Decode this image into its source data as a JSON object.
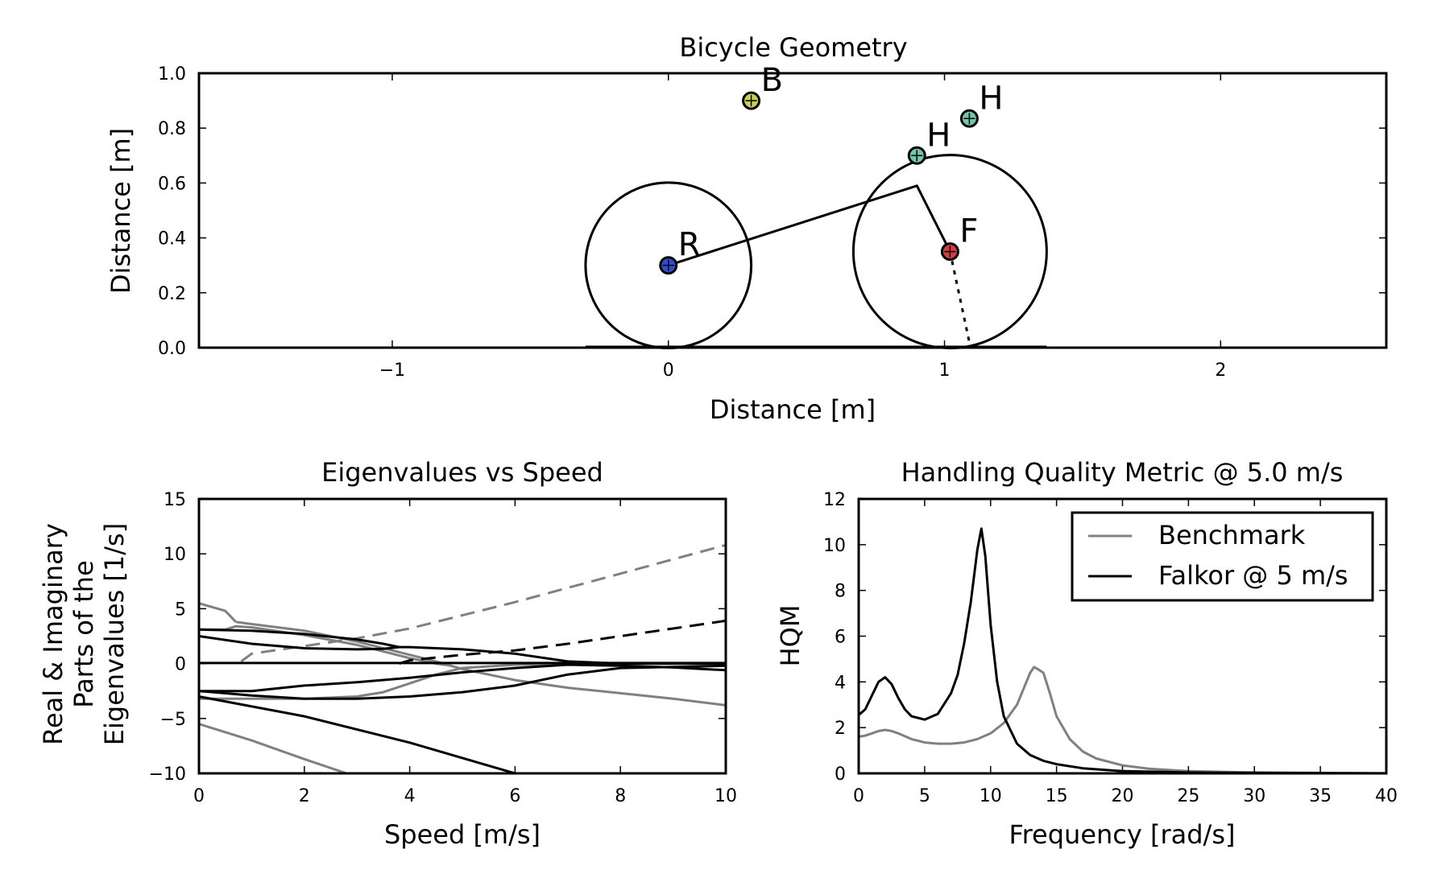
{
  "chart_data": [
    {
      "type": "line",
      "title": "Bicycle Geometry",
      "xlabel": "Distance [m]",
      "ylabel": "Distance [m]",
      "xlim": [
        -1.7,
        2.6
      ],
      "ylim": [
        0.0,
        1.0
      ],
      "xticks": [
        -1,
        0,
        1,
        2
      ],
      "xticklabels": [
        "−1",
        "0",
        "1",
        "2"
      ],
      "yticks": [
        0.0,
        0.2,
        0.4,
        0.6,
        0.8,
        1.0
      ],
      "yticklabels": [
        "0.0",
        "0.2",
        "0.4",
        "0.6",
        "0.8",
        "1.0"
      ],
      "rear_wheel": {
        "center": [
          0.0,
          0.3
        ],
        "radius": 0.3
      },
      "front_wheel": {
        "center": [
          1.02,
          0.35
        ],
        "radius": 0.35
      },
      "frame": [
        [
          0.0,
          0.3
        ],
        [
          0.9,
          0.59
        ],
        [
          1.02,
          0.35
        ]
      ],
      "steer_axis": [
        [
          1.02,
          0.35
        ],
        [
          1.09,
          0.02
        ]
      ],
      "points": [
        {
          "label": "R",
          "x": 0.0,
          "y": 0.3,
          "color": "#3050c8"
        },
        {
          "label": "B",
          "x": 0.3,
          "y": 0.9,
          "color": "#c8d050"
        },
        {
          "label": "H",
          "x": 0.9,
          "y": 0.7,
          "color": "#70c8a8"
        },
        {
          "label": "H",
          "x": 1.09,
          "y": 0.835,
          "color": "#70c8a8"
        },
        {
          "label": "F",
          "x": 1.02,
          "y": 0.35,
          "color": "#d04040"
        }
      ]
    },
    {
      "type": "line",
      "title": "Eigenvalues vs Speed",
      "xlabel": "Speed [m/s]",
      "ylabel": [
        "Real & Imaginary",
        "Parts of the",
        "Eigenvalues [1/s]"
      ],
      "xlim": [
        0,
        10
      ],
      "ylim": [
        -10,
        15
      ],
      "xticks": [
        0,
        2,
        4,
        6,
        8,
        10
      ],
      "xticklabels": [
        "0",
        "2",
        "4",
        "6",
        "8",
        "10"
      ],
      "yticks": [
        -10,
        -5,
        0,
        5,
        10,
        15
      ],
      "yticklabels": [
        "−10",
        "−5",
        "0",
        "5",
        "10",
        "15"
      ],
      "series": [
        {
          "color": "#808080",
          "style": "solid",
          "x": [
            0,
            0.5,
            0.7
          ],
          "y": [
            5.5,
            4.8,
            3.8
          ]
        },
        {
          "color": "#808080",
          "style": "solid",
          "x": [
            0.7,
            1,
            2,
            3,
            4,
            4.5,
            5,
            6,
            7,
            8,
            9,
            10
          ],
          "y": [
            3.8,
            3.6,
            3.0,
            2.0,
            0.8,
            0.2,
            -0.5,
            -1.5,
            -2.2,
            -2.7,
            -3.2,
            -3.8
          ]
        },
        {
          "color": "#808080",
          "style": "solid",
          "x": [
            0,
            0.5,
            0.7,
            1,
            2,
            3,
            3.5,
            4,
            4.5,
            4.8
          ],
          "y": [
            3.1,
            3.1,
            3.4,
            3.3,
            2.6,
            1.7,
            1.1,
            0.5,
            0.0,
            -0.2
          ]
        },
        {
          "color": "#808080",
          "style": "solid",
          "x": [
            0,
            1,
            2,
            3,
            3.5,
            4,
            4.5,
            5,
            6,
            7,
            8,
            9,
            10
          ],
          "y": [
            -3.2,
            -3.2,
            -3.2,
            -3.0,
            -2.6,
            -1.8,
            -1.0,
            -0.4,
            -0.1,
            0.0,
            0.0,
            0.0,
            0.0
          ]
        },
        {
          "color": "#808080",
          "style": "solid",
          "x": [
            0,
            1,
            2,
            2.8
          ],
          "y": [
            -5.5,
            -7.0,
            -8.7,
            -10.0
          ]
        },
        {
          "color": "#808080",
          "style": "dashed",
          "x": [
            0.8,
            1,
            2,
            3,
            4,
            5,
            6,
            7,
            8,
            9,
            10
          ],
          "y": [
            0.2,
            0.9,
            1.6,
            2.3,
            3.2,
            4.4,
            5.6,
            6.9,
            8.2,
            9.5,
            10.8
          ]
        },
        {
          "color": "#000000",
          "style": "solid",
          "x": [
            0,
            1,
            2,
            3,
            3.5,
            3.8
          ],
          "y": [
            3.1,
            3.0,
            2.7,
            2.2,
            1.8,
            1.5
          ]
        },
        {
          "color": "#000000",
          "style": "solid",
          "x": [
            0,
            1,
            2,
            3,
            3.5,
            3.8,
            4,
            5,
            6,
            7,
            8,
            9,
            10
          ],
          "y": [
            2.5,
            1.8,
            1.4,
            1.3,
            1.35,
            1.5,
            1.5,
            1.3,
            0.9,
            0.2,
            0.0,
            0.0,
            0.0
          ]
        },
        {
          "color": "#000000",
          "style": "solid",
          "x": [
            0,
            1,
            2,
            3,
            4,
            5,
            6,
            7,
            8,
            9,
            10
          ],
          "y": [
            -2.5,
            -2.9,
            -3.2,
            -3.2,
            -3.0,
            -2.6,
            -2.0,
            -1.0,
            -0.4,
            -0.3,
            -0.2
          ]
        },
        {
          "color": "#000000",
          "style": "solid",
          "x": [
            0,
            1,
            2,
            3,
            4,
            5,
            6,
            7,
            8,
            9,
            10
          ],
          "y": [
            -2.5,
            -2.5,
            -2.0,
            -1.7,
            -1.3,
            -0.8,
            -0.4,
            -0.1,
            -0.2,
            -0.35,
            -0.6
          ]
        },
        {
          "color": "#000000",
          "style": "solid",
          "x": [
            0,
            10
          ],
          "y": [
            0.05,
            0.05
          ]
        },
        {
          "color": "#000000",
          "style": "solid",
          "x": [
            0,
            2,
            4,
            6
          ],
          "y": [
            -3.0,
            -4.8,
            -7.2,
            -10.0
          ]
        },
        {
          "color": "#000000",
          "style": "dashed",
          "x": [
            3.8,
            4,
            5,
            6,
            7,
            8,
            9,
            10
          ],
          "y": [
            0.0,
            0.3,
            0.8,
            1.2,
            1.8,
            2.5,
            3.2,
            3.9
          ]
        }
      ]
    },
    {
      "type": "line",
      "title": "Handling Quality Metric @ 5.0 m/s",
      "xlabel": "Frequency [rad/s]",
      "ylabel": "HQM",
      "xlim": [
        0,
        40
      ],
      "ylim": [
        0,
        12
      ],
      "xticks": [
        0,
        5,
        10,
        15,
        20,
        25,
        30,
        35,
        40
      ],
      "xticklabels": [
        "0",
        "5",
        "10",
        "15",
        "20",
        "25",
        "30",
        "35",
        "40"
      ],
      "yticks": [
        0,
        2,
        4,
        6,
        8,
        10,
        12
      ],
      "yticklabels": [
        "0",
        "2",
        "4",
        "6",
        "8",
        "10",
        "12"
      ],
      "legend_position": "top-right",
      "series": [
        {
          "name": "Benchmark",
          "color": "#808080",
          "x": [
            0,
            0.5,
            1,
            1.5,
            2,
            2.5,
            3,
            4,
            5,
            6,
            7,
            8,
            9,
            10,
            11,
            12,
            12.5,
            13,
            13.3,
            13.6,
            14,
            14.5,
            15,
            16,
            17,
            18,
            20,
            22,
            25,
            30,
            35,
            40
          ],
          "y": [
            1.6,
            1.65,
            1.75,
            1.85,
            1.9,
            1.85,
            1.75,
            1.5,
            1.35,
            1.3,
            1.3,
            1.35,
            1.5,
            1.75,
            2.2,
            3.0,
            3.7,
            4.4,
            4.65,
            4.55,
            4.4,
            3.5,
            2.5,
            1.5,
            0.95,
            0.65,
            0.35,
            0.2,
            0.1,
            0.04,
            0.02,
            0.01
          ]
        },
        {
          "name": "Falkor @ 5 m/s",
          "color": "#000000",
          "x": [
            0,
            0.5,
            1,
            1.5,
            2,
            2.5,
            3,
            3.5,
            4,
            5,
            6,
            7,
            7.5,
            8,
            8.5,
            9,
            9.3,
            9.6,
            10,
            10.5,
            11,
            12,
            13,
            14,
            15,
            17,
            20,
            25,
            30,
            35,
            40
          ],
          "y": [
            2.55,
            2.8,
            3.4,
            4.0,
            4.2,
            3.9,
            3.3,
            2.8,
            2.5,
            2.35,
            2.6,
            3.5,
            4.3,
            5.7,
            7.5,
            9.8,
            10.7,
            9.5,
            6.5,
            4.0,
            2.5,
            1.3,
            0.8,
            0.55,
            0.4,
            0.22,
            0.1,
            0.04,
            0.02,
            0.01,
            0.0
          ]
        }
      ]
    }
  ]
}
